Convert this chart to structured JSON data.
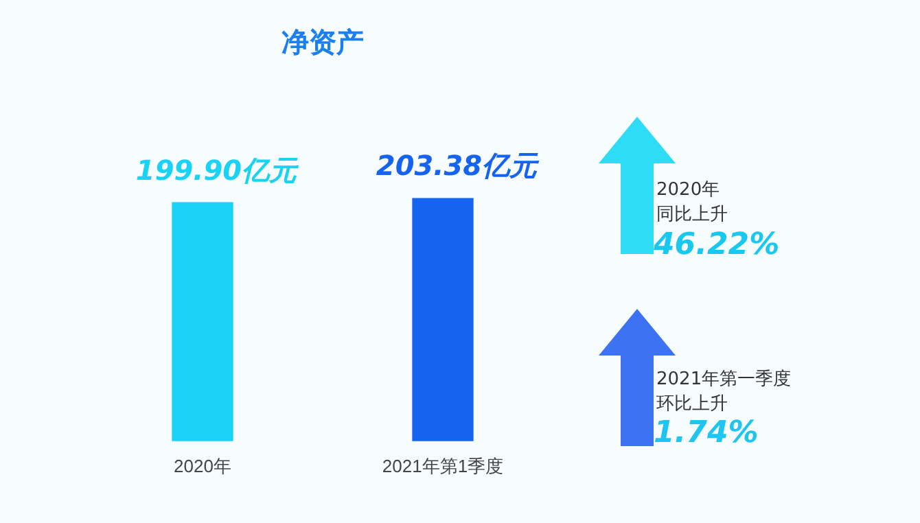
{
  "chart_data": {
    "type": "bar",
    "title": "净资产",
    "categories": [
      "2020年",
      "2021年第1季度"
    ],
    "values": [
      199.9,
      203.38
    ],
    "colors": [
      "#1ad3f4",
      "#1663f0"
    ],
    "value_labels": [
      "199.90亿元",
      "203.38亿元"
    ],
    "grid": false,
    "legend": false,
    "annotations": [
      "2020年",
      "同比上升",
      "46.22%",
      "2021年第一季度",
      "环比上升",
      "1.74%"
    ]
  }
}
